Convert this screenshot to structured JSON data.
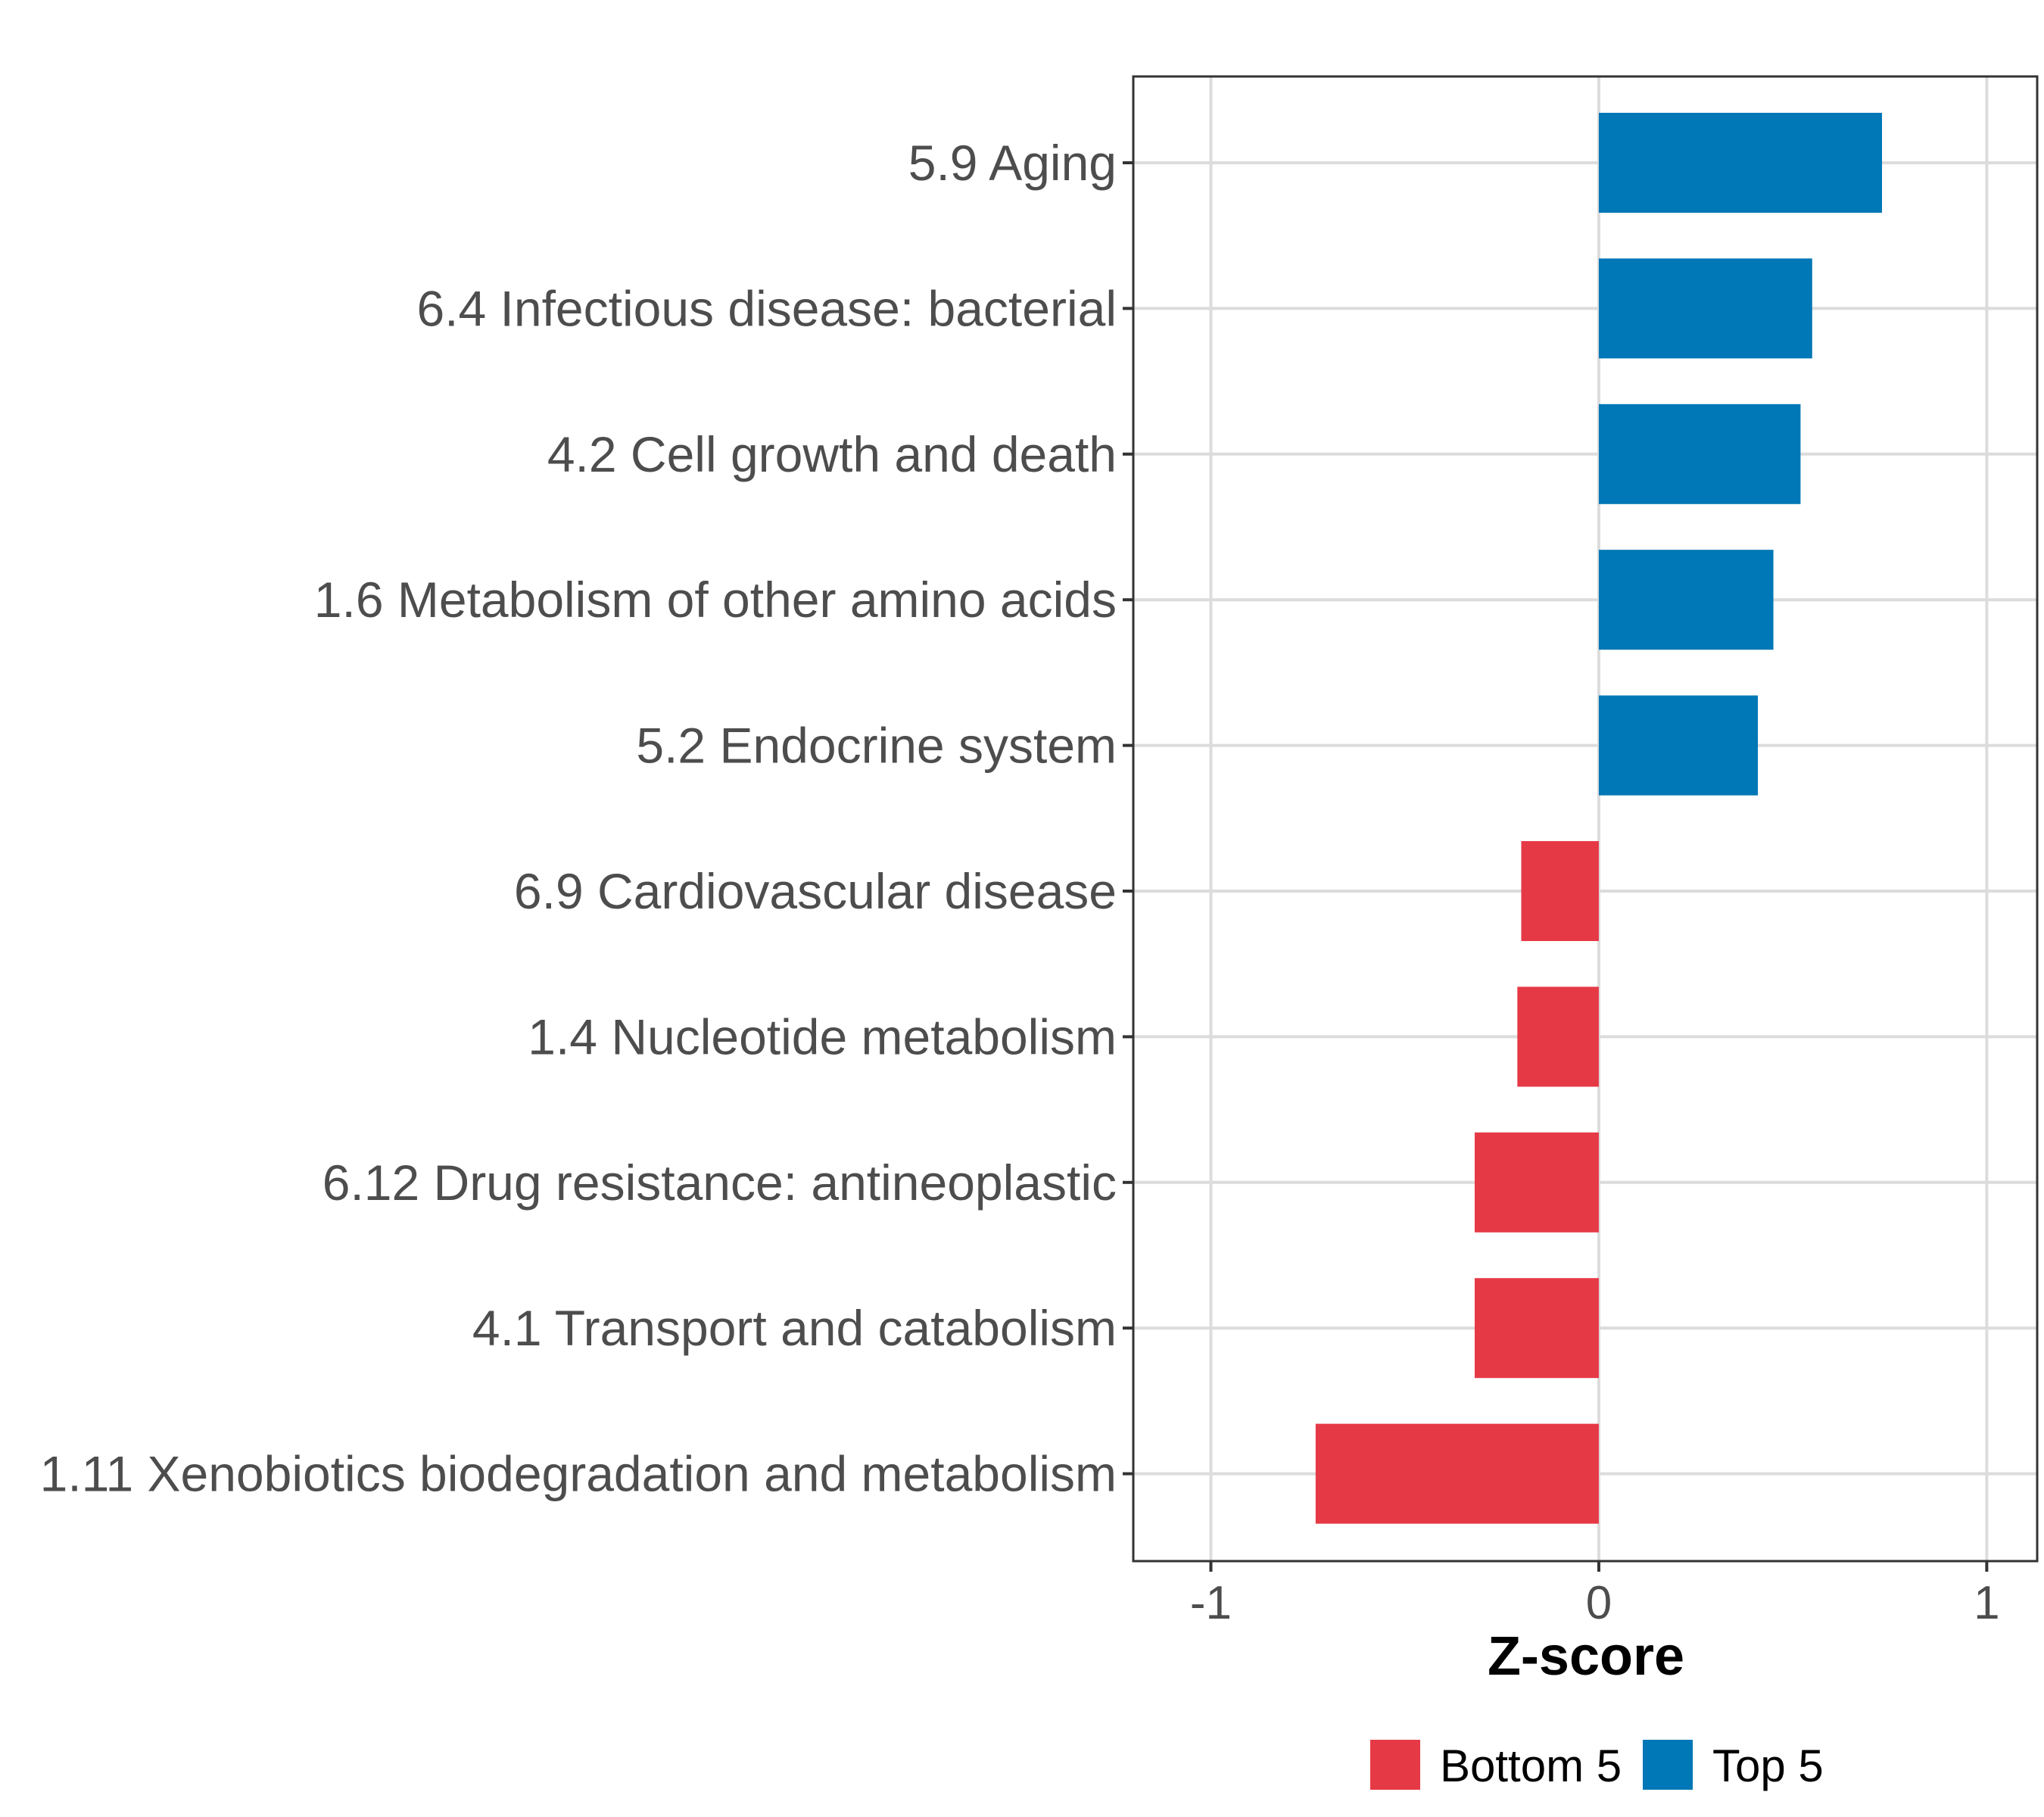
{
  "chart_data": {
    "type": "bar",
    "orientation": "horizontal",
    "title": "",
    "xlabel": "Z-score",
    "ylabel": "",
    "xlim": [
      -1.2,
      1.13
    ],
    "xticks": [
      -1,
      0,
      1
    ],
    "xtick_labels": [
      "-1",
      "0",
      "1"
    ],
    "grid": true,
    "legend_position": "bottom",
    "categories": [
      "5.9 Aging",
      "6.4 Infectious disease: bacterial",
      "4.2 Cell growth and death",
      "1.6 Metabolism of other amino acids",
      "5.2 Endocrine system",
      "6.9 Cardiovascular disease",
      "1.4 Nucleotide metabolism",
      "6.12 Drug resistance: antineoplastic",
      "4.1 Transport and catabolism",
      "1.11 Xenobiotics biodegradation and metabolism"
    ],
    "values": [
      0.73,
      0.55,
      0.52,
      0.45,
      0.41,
      -0.2,
      -0.21,
      -0.32,
      -0.32,
      -0.73
    ],
    "groups": [
      "Top 5",
      "Top 5",
      "Top 5",
      "Top 5",
      "Top 5",
      "Bottom 5",
      "Bottom 5",
      "Bottom 5",
      "Bottom 5",
      "Bottom 5"
    ],
    "legend": [
      {
        "name": "Bottom 5",
        "color": "#e63946"
      },
      {
        "name": "Top 5",
        "color": "#0077b6"
      }
    ]
  }
}
